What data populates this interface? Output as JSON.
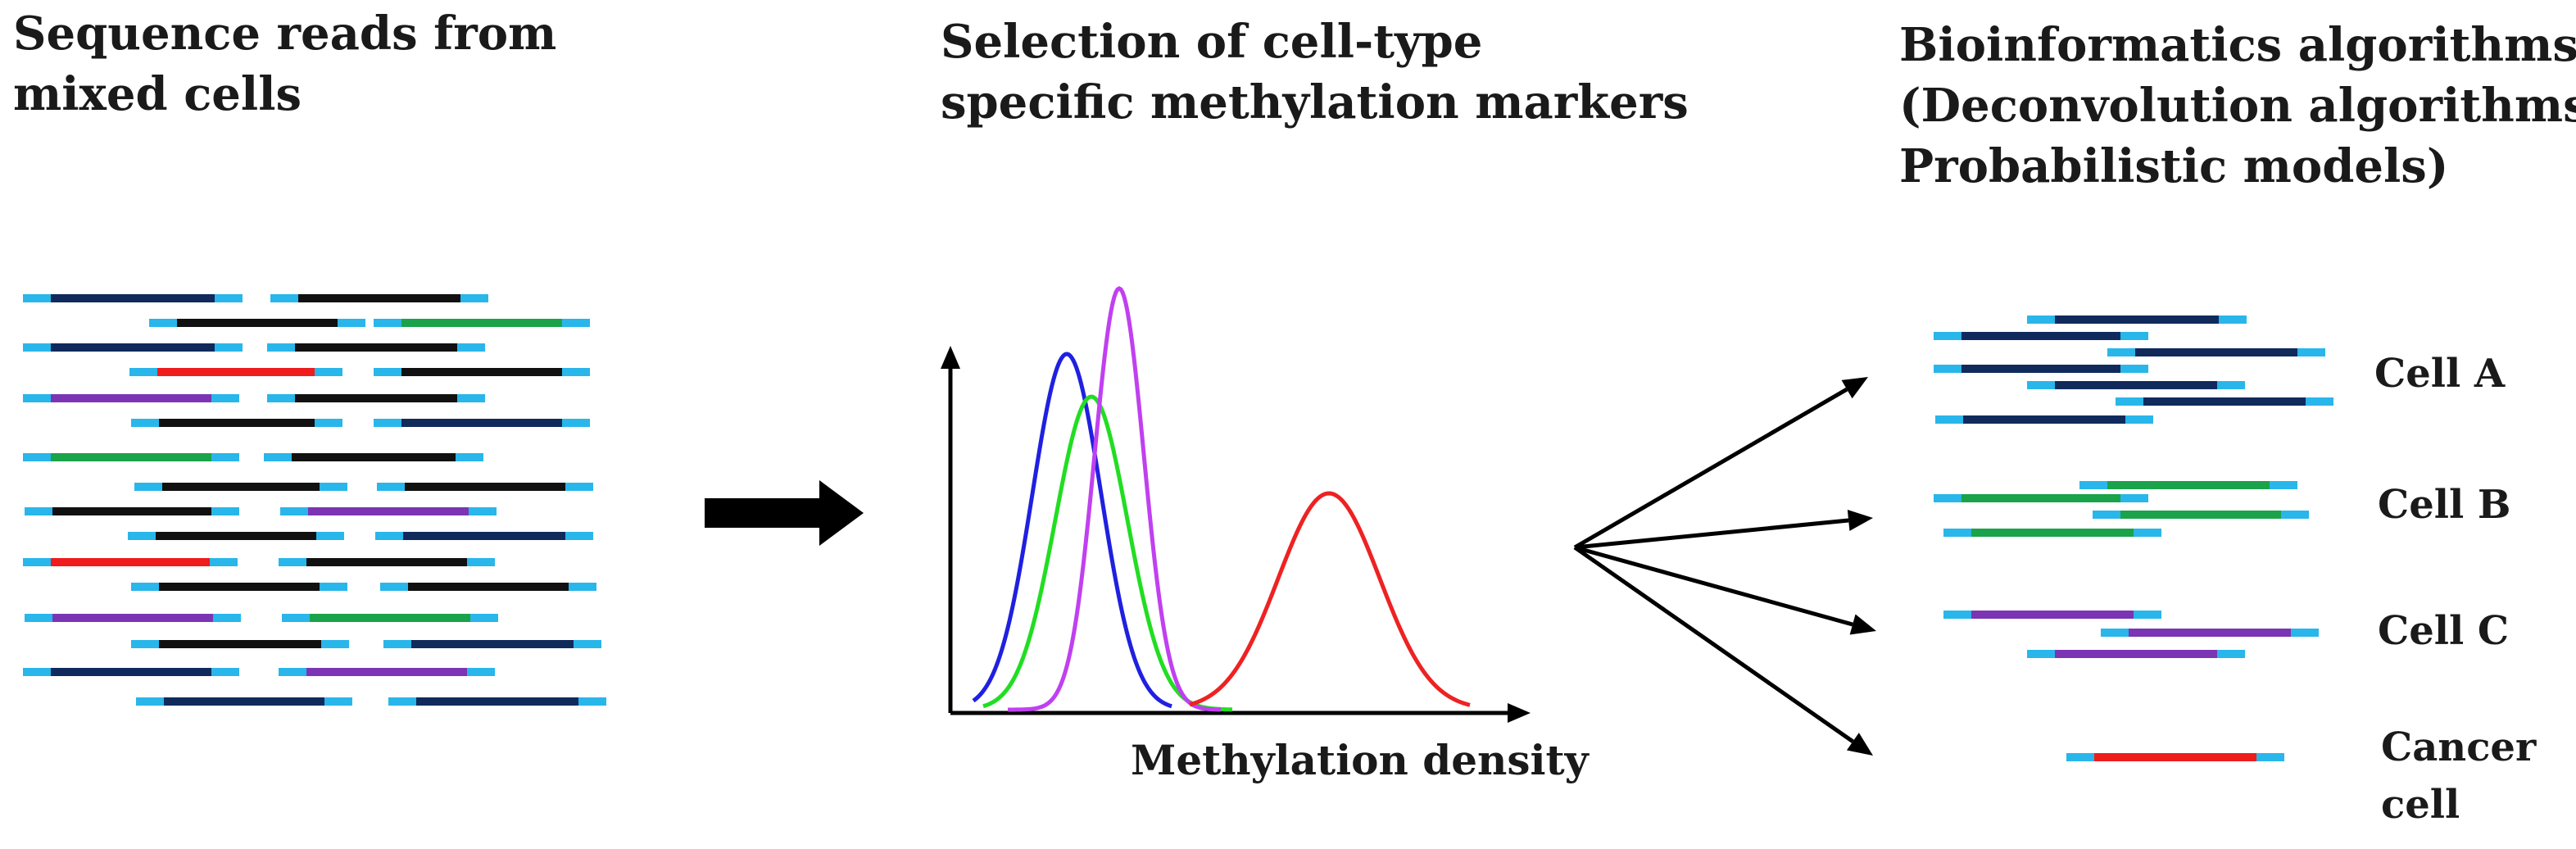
{
  "panels": {
    "reads": {
      "title_lines": [
        "Sequence reads from",
        "mixed cells"
      ]
    },
    "markers": {
      "title_lines": [
        "Selection of cell-type",
        "specific methylation markers"
      ],
      "axis_label": "Methylation density"
    },
    "algorithms": {
      "title_lines": [
        "Bioinformatics algorithms",
        "(Deconvolution algorithms/",
        "Probabilistic models)"
      ]
    }
  },
  "cell_labels": [
    [
      "Cell A"
    ],
    [
      "Cell B"
    ],
    [
      "Cell C"
    ],
    [
      "Cancer",
      "cell"
    ]
  ],
  "colors": {
    "adapter": "#29b6ea",
    "navy": "#102a5c",
    "black": "#111111",
    "green": "#1aa34a",
    "purple": "#7b35b4",
    "red": "#ee1c1c",
    "curve_blue": "#2020e0",
    "curve_green": "#22dd22",
    "curve_magenta": "#c040f0",
    "curve_red": "#ee2222",
    "arrow": "#000000"
  },
  "read_color_keys": [
    "navy",
    "black",
    "green",
    "purple",
    "red"
  ]
}
